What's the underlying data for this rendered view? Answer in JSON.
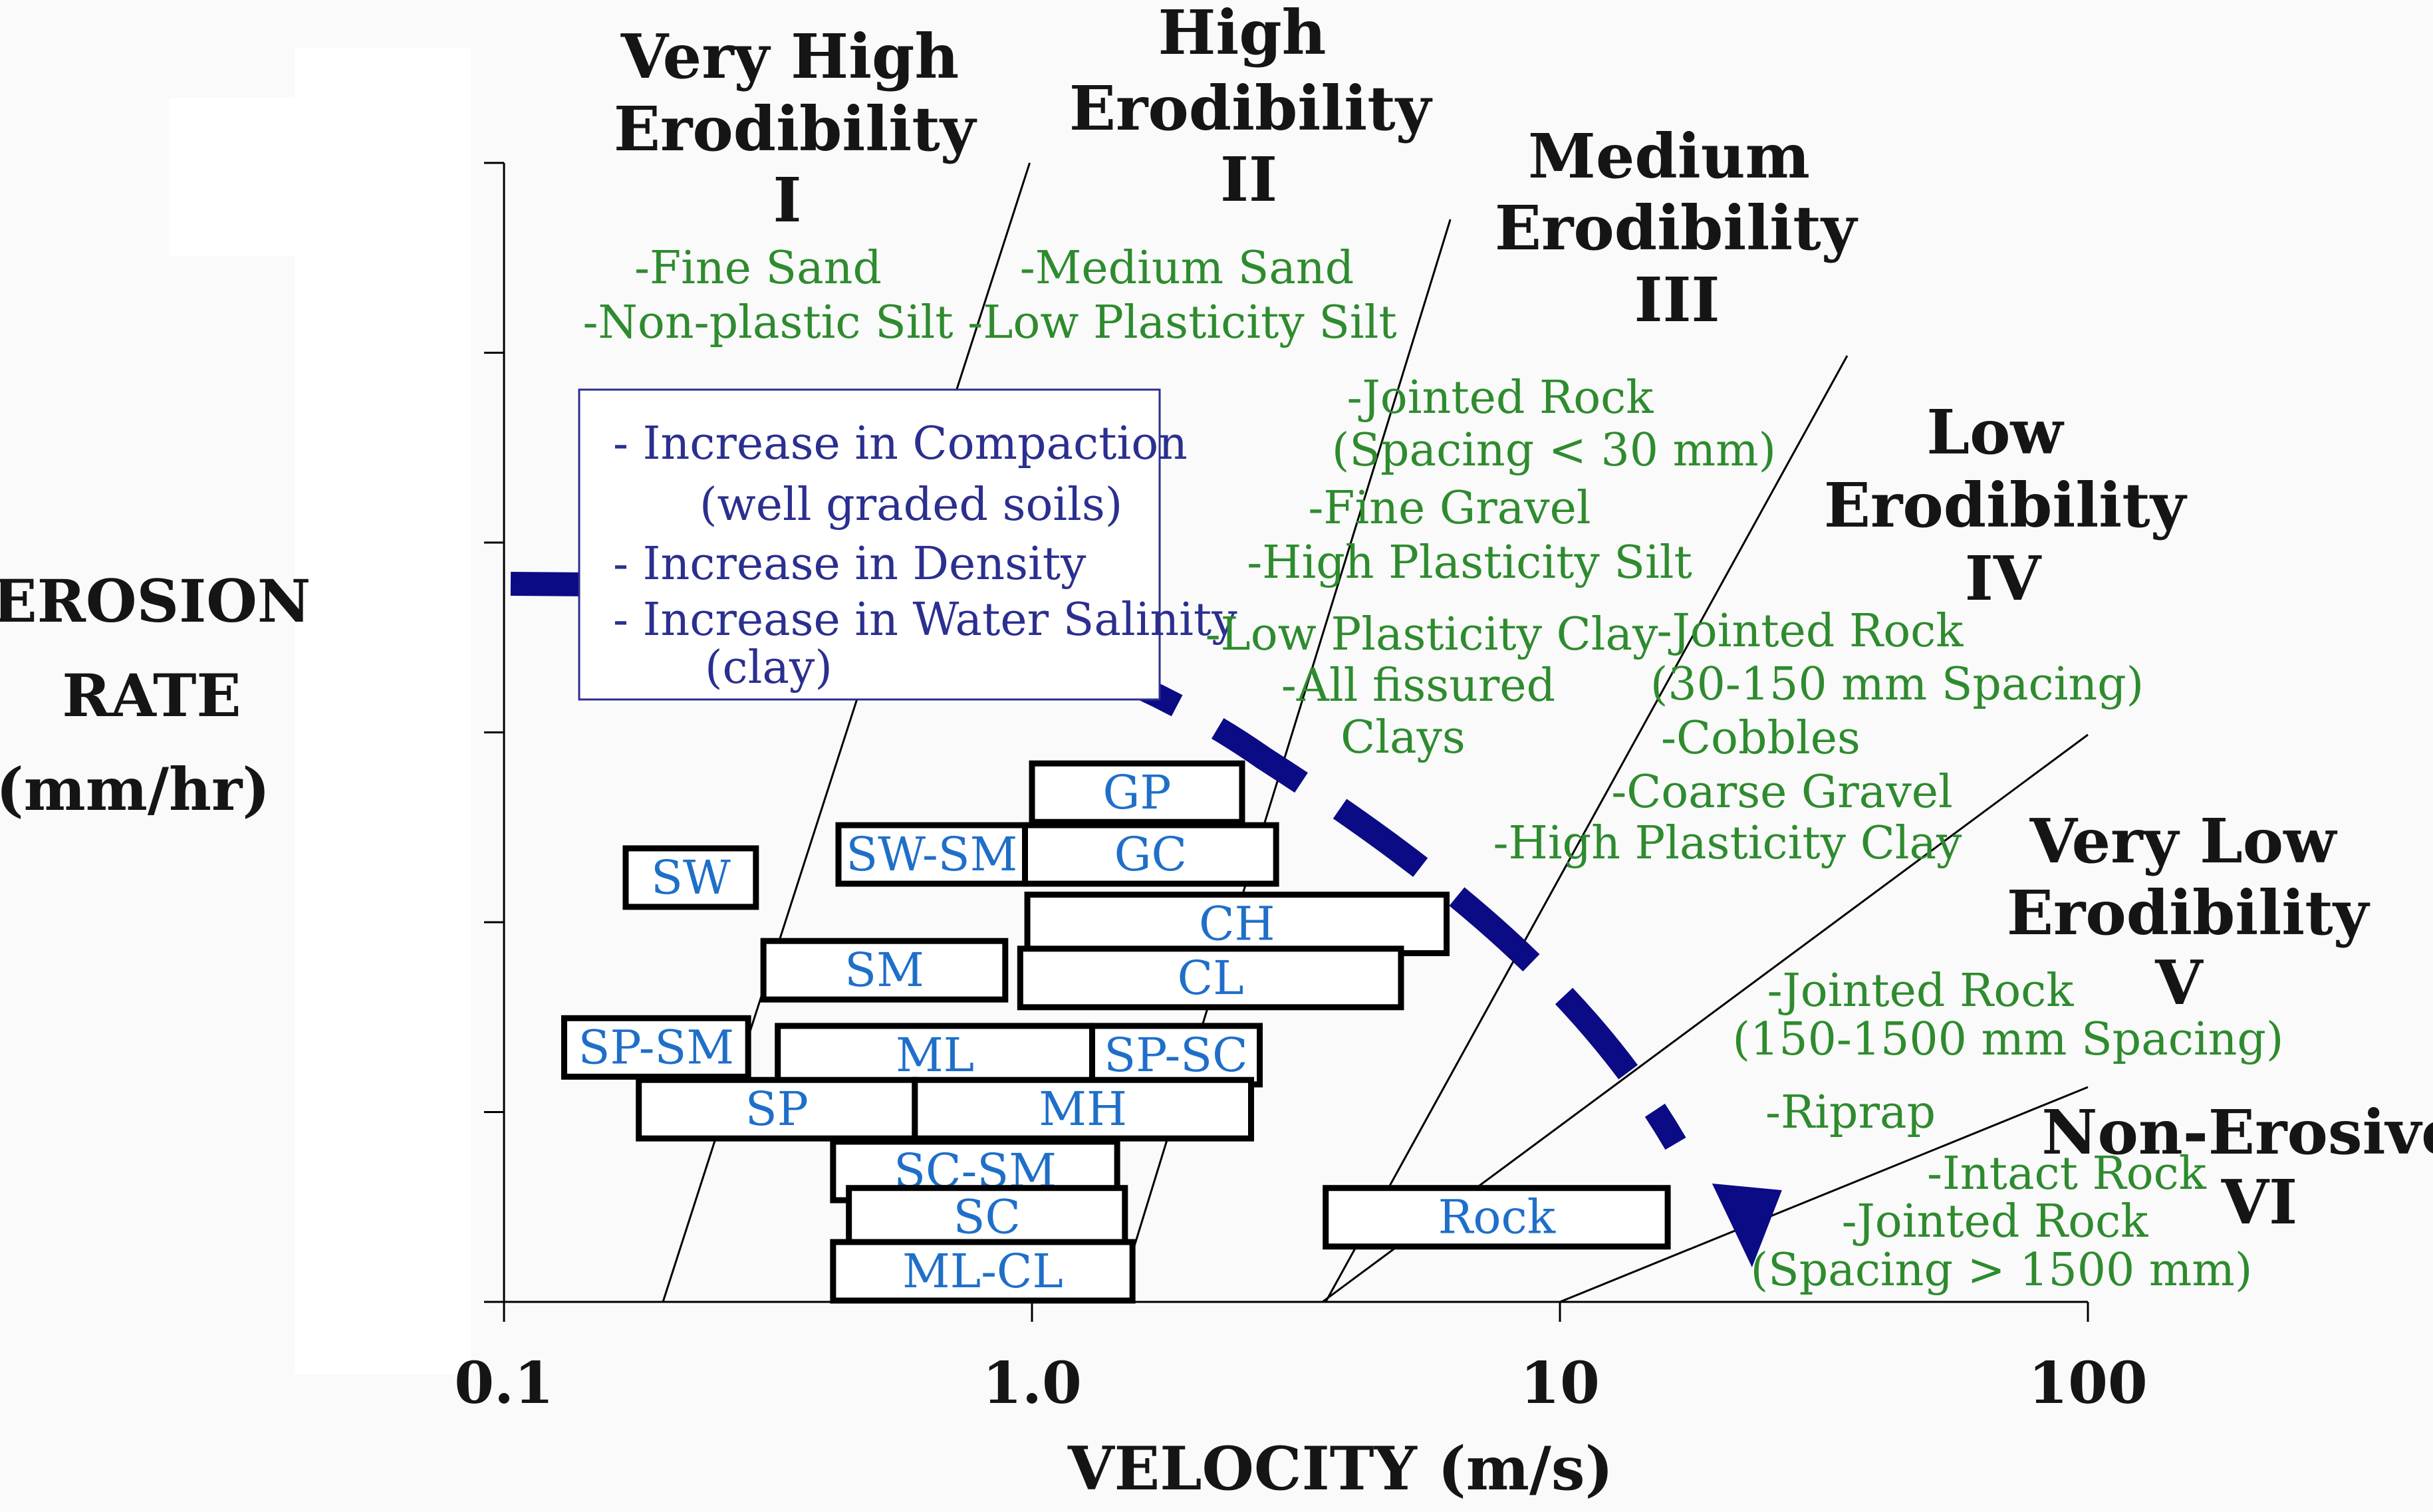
{
  "chart_data": {
    "type": "scatter",
    "title": "",
    "xlabel": "VELOCITY (m/s)",
    "ylabel": [
      "EROSION",
      "RATE",
      "(mm/hr)"
    ],
    "x_scale": "log",
    "xlim": [
      0.1,
      100
    ],
    "x_ticks": [
      0.1,
      1.0,
      10,
      100
    ],
    "x_tick_labels": [
      "0.1",
      "1.0",
      "10",
      "100"
    ],
    "y_tick_count": 7,
    "grid": false,
    "background": "#fafafa",
    "colors": {
      "category_title": "#151515",
      "category_description": "#2e8b2e",
      "soil_label": "#1f6fc9",
      "soil_box_border": "#000000",
      "arrow": "#0b0b86",
      "note_text": "#2b2f8f",
      "note_border": "#2b2f8f",
      "boundary_line": "#000000"
    },
    "categories": [
      {
        "id": "I",
        "title": [
          "Very High",
          "Erodibility",
          "I"
        ],
        "desc": [
          "-Fine Sand",
          "-Non-plastic Silt"
        ]
      },
      {
        "id": "II",
        "title": [
          "High",
          "Erodibility",
          "II"
        ],
        "desc": [
          "-Medium Sand",
          "-Low Plasticity Silt"
        ]
      },
      {
        "id": "III",
        "title": [
          "Medium",
          "Erodibility",
          "III"
        ],
        "desc": [
          "-Jointed Rock",
          "(Spacing < 30 mm)",
          "-Fine Gravel",
          "-High Plasticity Silt",
          "-Low Plasticity Clay",
          "-All fissured",
          "Clays"
        ]
      },
      {
        "id": "IV",
        "title": [
          "Low",
          "Erodibility",
          "IV"
        ],
        "desc": [
          "-Jointed Rock",
          "(30-150 mm Spacing)",
          "-Cobbles",
          "-Coarse Gravel",
          "-High Plasticity Clay"
        ]
      },
      {
        "id": "V",
        "title": [
          "Very Low",
          "Erodibility",
          "V"
        ],
        "desc": [
          "-Jointed Rock",
          "(150-1500 mm Spacing)",
          "-Riprap"
        ]
      },
      {
        "id": "VI",
        "title": [
          "Non-Erosive",
          "VI"
        ],
        "desc": [
          "-Intact Rock",
          "-Jointed Rock",
          "(Spacing > 1500 mm)"
        ]
      }
    ],
    "boundaries": [
      {
        "name": "I-II",
        "x_bottom": 0.2,
        "x_top": 0.99
      },
      {
        "name": "II-III",
        "x_bottom": 1.45,
        "x_top": 6.2
      },
      {
        "name": "III-IV",
        "x_bottom": 3.6,
        "x_top": 35
      },
      {
        "name": "IV-V",
        "x_bottom": 10,
        "x_top": 100
      },
      {
        "name": "V-VI",
        "x_bottom": 10,
        "x_top": 100
      }
    ],
    "soil_boxes": [
      {
        "label": "SW",
        "x_range": [
          0.17,
          0.3
        ],
        "level": 5.4
      },
      {
        "label": "SW-SM",
        "x_range": [
          0.43,
          0.97
        ],
        "level": 5.55
      },
      {
        "label": "GC",
        "x_range": [
          0.97,
          2.9
        ],
        "level": 5.55
      },
      {
        "label": "GP",
        "x_range": [
          1.0,
          2.5
        ],
        "level": 5.95
      },
      {
        "label": "CH",
        "x_range": [
          0.98,
          6.1
        ],
        "level": 5.1
      },
      {
        "label": "SM",
        "x_range": [
          0.31,
          0.89
        ],
        "level": 4.8
      },
      {
        "label": "CL",
        "x_range": [
          0.95,
          5.0
        ],
        "level": 4.75
      },
      {
        "label": "SP-SM",
        "x_range": [
          0.13,
          0.29
        ],
        "level": 4.3
      },
      {
        "label": "ML",
        "x_range": [
          0.33,
          1.3
        ],
        "level": 4.25
      },
      {
        "label": "SP-SC",
        "x_range": [
          1.3,
          2.7
        ],
        "level": 4.25
      },
      {
        "label": "SP",
        "x_range": [
          0.18,
          0.6
        ],
        "level": 3.9
      },
      {
        "label": "MH",
        "x_range": [
          0.6,
          2.6
        ],
        "level": 3.9
      },
      {
        "label": "SC-SM",
        "x_range": [
          0.42,
          1.45
        ],
        "level": 3.5
      },
      {
        "label": "SC",
        "x_range": [
          0.45,
          1.5
        ],
        "level": 3.2
      },
      {
        "label": "ML-CL",
        "x_range": [
          0.42,
          1.55
        ],
        "level": 2.85
      },
      {
        "label": "Rock",
        "x_range": [
          3.6,
          16
        ],
        "level": 3.2
      }
    ],
    "trend_arrow": {
      "direction": "down-right",
      "from_x": 0.1,
      "to_x": 21
    },
    "note_box": {
      "lines": [
        "- Increase in Compaction",
        "(well graded soils)",
        "- Increase in Density",
        "- Increase in Water Salinity",
        "(clay)"
      ]
    }
  }
}
